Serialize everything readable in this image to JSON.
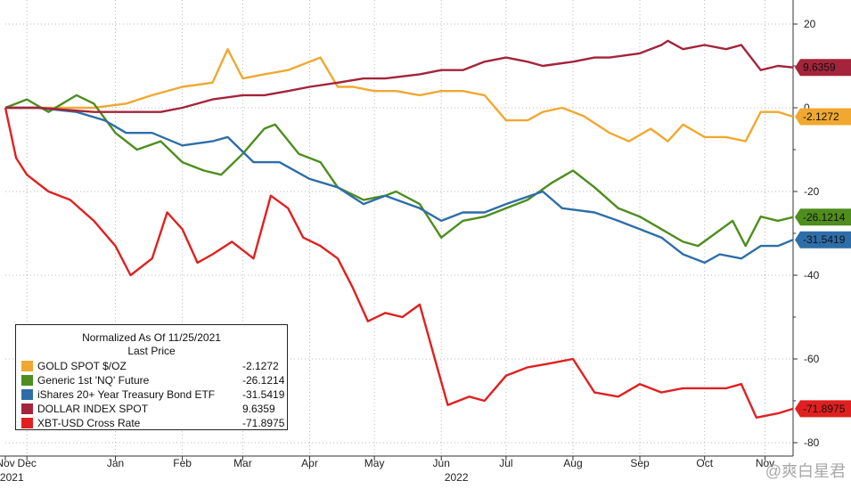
{
  "chart_data": {
    "type": "line",
    "title": "",
    "xlabel": "",
    "ylabel": "",
    "ylim": [
      -80,
      25
    ],
    "y_ticks": [
      20,
      0,
      -20,
      -40,
      -60,
      -80
    ],
    "y_axis_position": "right",
    "x_range": [
      "2021-11-25",
      "2022-11-25"
    ],
    "x_ticks": [
      {
        "date": "2021-11-25",
        "label": "Nov"
      },
      {
        "date": "2021-12-05",
        "label": "Dec"
      },
      {
        "date": "2022-01-15",
        "label": "Jan"
      },
      {
        "date": "2022-02-15",
        "label": "Feb"
      },
      {
        "date": "2022-03-15",
        "label": "Mar"
      },
      {
        "date": "2022-04-15",
        "label": "Apr"
      },
      {
        "date": "2022-05-15",
        "label": "May"
      },
      {
        "date": "2022-06-15",
        "label": "Jun"
      },
      {
        "date": "2022-07-15",
        "label": "Jul"
      },
      {
        "date": "2022-08-15",
        "label": "Aug"
      },
      {
        "date": "2022-09-15",
        "label": "Sep"
      },
      {
        "date": "2022-10-15",
        "label": "Oct"
      },
      {
        "date": "2022-11-12",
        "label": "Nov"
      }
    ],
    "x_year_labels": [
      {
        "date": "2021-11-28",
        "label": "2021"
      },
      {
        "date": "2022-06-22",
        "label": "2022"
      }
    ],
    "grid": true,
    "legend_placement": "bottom-left",
    "legend_title": [
      "Normalized As Of 11/25/2021",
      "Last Price"
    ],
    "series": [
      {
        "name": "GOLD SPOT $/OZ",
        "color": "#f0a830",
        "last": "-2.1272",
        "points": [
          [
            "2021-11-25",
            0
          ],
          [
            "2021-12-10",
            0
          ],
          [
            "2022-01-05",
            0
          ],
          [
            "2022-01-20",
            1
          ],
          [
            "2022-02-01",
            3
          ],
          [
            "2022-02-15",
            5
          ],
          [
            "2022-03-01",
            6
          ],
          [
            "2022-03-08",
            14
          ],
          [
            "2022-03-15",
            7
          ],
          [
            "2022-03-25",
            8
          ],
          [
            "2022-04-05",
            9
          ],
          [
            "2022-04-15",
            11
          ],
          [
            "2022-04-20",
            12
          ],
          [
            "2022-04-28",
            5
          ],
          [
            "2022-05-05",
            5
          ],
          [
            "2022-05-15",
            4
          ],
          [
            "2022-05-25",
            4
          ],
          [
            "2022-06-05",
            3
          ],
          [
            "2022-06-15",
            4
          ],
          [
            "2022-06-25",
            4
          ],
          [
            "2022-07-05",
            3
          ],
          [
            "2022-07-15",
            -3
          ],
          [
            "2022-07-25",
            -3
          ],
          [
            "2022-08-01",
            -1
          ],
          [
            "2022-08-10",
            0
          ],
          [
            "2022-08-20",
            -2
          ],
          [
            "2022-09-01",
            -6
          ],
          [
            "2022-09-10",
            -8
          ],
          [
            "2022-09-20",
            -5
          ],
          [
            "2022-09-28",
            -8
          ],
          [
            "2022-10-05",
            -4
          ],
          [
            "2022-10-15",
            -7
          ],
          [
            "2022-10-25",
            -7
          ],
          [
            "2022-11-03",
            -8
          ],
          [
            "2022-11-10",
            -1
          ],
          [
            "2022-11-18",
            -1
          ],
          [
            "2022-11-25",
            -2.1272
          ]
        ]
      },
      {
        "name": "Generic 1st 'NQ' Future",
        "color": "#4e8d1e",
        "last": "-26.1214",
        "points": [
          [
            "2021-11-25",
            0
          ],
          [
            "2021-12-05",
            2
          ],
          [
            "2021-12-15",
            -1
          ],
          [
            "2021-12-28",
            3
          ],
          [
            "2022-01-05",
            1
          ],
          [
            "2022-01-15",
            -6
          ],
          [
            "2022-01-25",
            -10
          ],
          [
            "2022-02-05",
            -8
          ],
          [
            "2022-02-15",
            -13
          ],
          [
            "2022-02-25",
            -15
          ],
          [
            "2022-03-05",
            -16
          ],
          [
            "2022-03-15",
            -11
          ],
          [
            "2022-03-25",
            -5
          ],
          [
            "2022-03-30",
            -4
          ],
          [
            "2022-04-10",
            -11
          ],
          [
            "2022-04-20",
            -13
          ],
          [
            "2022-04-28",
            -19
          ],
          [
            "2022-05-10",
            -22
          ],
          [
            "2022-05-20",
            -21
          ],
          [
            "2022-05-25",
            -20
          ],
          [
            "2022-06-05",
            -23
          ],
          [
            "2022-06-15",
            -31
          ],
          [
            "2022-06-25",
            -27
          ],
          [
            "2022-07-05",
            -26
          ],
          [
            "2022-07-15",
            -24
          ],
          [
            "2022-07-25",
            -22
          ],
          [
            "2022-08-05",
            -18
          ],
          [
            "2022-08-15",
            -15
          ],
          [
            "2022-08-25",
            -19
          ],
          [
            "2022-09-05",
            -24
          ],
          [
            "2022-09-15",
            -26
          ],
          [
            "2022-09-25",
            -29
          ],
          [
            "2022-10-05",
            -32
          ],
          [
            "2022-10-12",
            -33
          ],
          [
            "2022-10-20",
            -30
          ],
          [
            "2022-10-28",
            -27
          ],
          [
            "2022-11-03",
            -33
          ],
          [
            "2022-11-10",
            -26
          ],
          [
            "2022-11-18",
            -27
          ],
          [
            "2022-11-25",
            -26.1214
          ]
        ]
      },
      {
        "name": "iShares 20+ Year Treasury Bond ETF",
        "color": "#2e6ea8",
        "last": "-31.5419",
        "points": [
          [
            "2021-11-25",
            0
          ],
          [
            "2021-12-10",
            0
          ],
          [
            "2021-12-28",
            -1
          ],
          [
            "2022-01-10",
            -3
          ],
          [
            "2022-01-20",
            -6
          ],
          [
            "2022-02-01",
            -6
          ],
          [
            "2022-02-15",
            -9
          ],
          [
            "2022-03-01",
            -8
          ],
          [
            "2022-03-08",
            -7
          ],
          [
            "2022-03-20",
            -13
          ],
          [
            "2022-04-01",
            -13
          ],
          [
            "2022-04-15",
            -17
          ],
          [
            "2022-04-28",
            -19
          ],
          [
            "2022-05-10",
            -23
          ],
          [
            "2022-05-20",
            -21
          ],
          [
            "2022-06-05",
            -24
          ],
          [
            "2022-06-15",
            -27
          ],
          [
            "2022-06-25",
            -25
          ],
          [
            "2022-07-05",
            -25
          ],
          [
            "2022-07-15",
            -23
          ],
          [
            "2022-08-01",
            -20
          ],
          [
            "2022-08-10",
            -24
          ],
          [
            "2022-08-25",
            -25
          ],
          [
            "2022-09-05",
            -27
          ],
          [
            "2022-09-15",
            -29
          ],
          [
            "2022-09-25",
            -31
          ],
          [
            "2022-10-05",
            -35
          ],
          [
            "2022-10-15",
            -37
          ],
          [
            "2022-10-22",
            -35
          ],
          [
            "2022-11-01",
            -36
          ],
          [
            "2022-11-10",
            -33
          ],
          [
            "2022-11-18",
            -33
          ],
          [
            "2022-11-25",
            -31.5419
          ]
        ]
      },
      {
        "name": "DOLLAR INDEX SPOT",
        "color": "#a3243b",
        "last": "9.6359",
        "points": [
          [
            "2021-11-25",
            0
          ],
          [
            "2021-12-10",
            0
          ],
          [
            "2022-01-05",
            -1
          ],
          [
            "2022-01-20",
            -1
          ],
          [
            "2022-02-05",
            -1
          ],
          [
            "2022-02-15",
            0
          ],
          [
            "2022-03-01",
            2
          ],
          [
            "2022-03-15",
            3
          ],
          [
            "2022-03-25",
            3
          ],
          [
            "2022-04-05",
            4
          ],
          [
            "2022-04-15",
            5
          ],
          [
            "2022-04-28",
            6
          ],
          [
            "2022-05-10",
            7
          ],
          [
            "2022-05-20",
            7
          ],
          [
            "2022-06-05",
            8
          ],
          [
            "2022-06-15",
            9
          ],
          [
            "2022-06-25",
            9
          ],
          [
            "2022-07-05",
            11
          ],
          [
            "2022-07-15",
            12
          ],
          [
            "2022-07-25",
            11
          ],
          [
            "2022-08-01",
            10
          ],
          [
            "2022-08-15",
            11
          ],
          [
            "2022-08-25",
            12
          ],
          [
            "2022-09-01",
            12
          ],
          [
            "2022-09-15",
            13
          ],
          [
            "2022-09-25",
            15
          ],
          [
            "2022-09-28",
            16
          ],
          [
            "2022-10-05",
            14
          ],
          [
            "2022-10-15",
            15
          ],
          [
            "2022-10-25",
            14
          ],
          [
            "2022-11-01",
            15
          ],
          [
            "2022-11-10",
            9
          ],
          [
            "2022-11-18",
            10
          ],
          [
            "2022-11-25",
            9.6359
          ]
        ]
      },
      {
        "name": "XBT-USD Cross Rate",
        "color": "#e02020",
        "last": "-71.8975",
        "points": [
          [
            "2021-11-25",
            0
          ],
          [
            "2021-11-30",
            -12
          ],
          [
            "2021-12-05",
            -16
          ],
          [
            "2021-12-15",
            -20
          ],
          [
            "2021-12-25",
            -22
          ],
          [
            "2022-01-05",
            -27
          ],
          [
            "2022-01-15",
            -33
          ],
          [
            "2022-01-22",
            -40
          ],
          [
            "2022-02-01",
            -36
          ],
          [
            "2022-02-08",
            -25
          ],
          [
            "2022-02-15",
            -29
          ],
          [
            "2022-02-22",
            -37
          ],
          [
            "2022-03-01",
            -35
          ],
          [
            "2022-03-10",
            -32
          ],
          [
            "2022-03-20",
            -36
          ],
          [
            "2022-03-28",
            -21
          ],
          [
            "2022-04-05",
            -24
          ],
          [
            "2022-04-12",
            -31
          ],
          [
            "2022-04-20",
            -33
          ],
          [
            "2022-04-28",
            -36
          ],
          [
            "2022-05-05",
            -43
          ],
          [
            "2022-05-12",
            -51
          ],
          [
            "2022-05-20",
            -49
          ],
          [
            "2022-05-28",
            -50
          ],
          [
            "2022-06-05",
            -47
          ],
          [
            "2022-06-12",
            -60
          ],
          [
            "2022-06-18",
            -71
          ],
          [
            "2022-06-28",
            -69
          ],
          [
            "2022-07-05",
            -70
          ],
          [
            "2022-07-15",
            -64
          ],
          [
            "2022-07-25",
            -62
          ],
          [
            "2022-08-05",
            -61
          ],
          [
            "2022-08-15",
            -60
          ],
          [
            "2022-08-25",
            -68
          ],
          [
            "2022-09-05",
            -69
          ],
          [
            "2022-09-15",
            -66
          ],
          [
            "2022-09-25",
            -68
          ],
          [
            "2022-10-05",
            -67
          ],
          [
            "2022-10-15",
            -67
          ],
          [
            "2022-10-25",
            -67
          ],
          [
            "2022-11-01",
            -66
          ],
          [
            "2022-11-08",
            -74
          ],
          [
            "2022-11-18",
            -73
          ],
          [
            "2022-11-25",
            -71.8975
          ]
        ]
      }
    ]
  },
  "watermark": "@爽白星君"
}
